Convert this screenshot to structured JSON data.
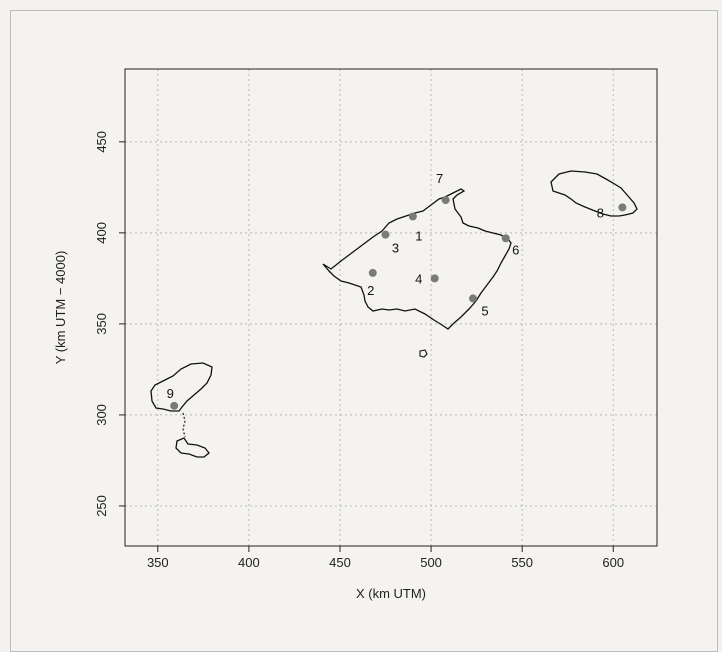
{
  "chart_data": {
    "type": "scatter",
    "xlabel": "X (km UTM)",
    "ylabel": "Y (km UTM − 4000)",
    "xlim": [
      332,
      624
    ],
    "ylim": [
      228,
      490
    ],
    "x_ticks": [
      350,
      400,
      450,
      500,
      550,
      600
    ],
    "y_ticks": [
      250,
      300,
      350,
      400,
      450
    ],
    "grid": true,
    "point_color": "#7a7a7a",
    "coast_color": "#111111",
    "points": [
      {
        "label": "1",
        "x": 490,
        "y": 409
      },
      {
        "label": "2",
        "x": 468,
        "y": 378
      },
      {
        "label": "3",
        "x": 475,
        "y": 399
      },
      {
        "label": "4",
        "x": 502,
        "y": 375
      },
      {
        "label": "5",
        "x": 523,
        "y": 364
      },
      {
        "label": "6",
        "x": 541,
        "y": 397
      },
      {
        "label": "7",
        "x": 508,
        "y": 418
      },
      {
        "label": "8",
        "x": 605,
        "y": 414
      },
      {
        "label": "9",
        "x": 359,
        "y": 305
      }
    ]
  }
}
